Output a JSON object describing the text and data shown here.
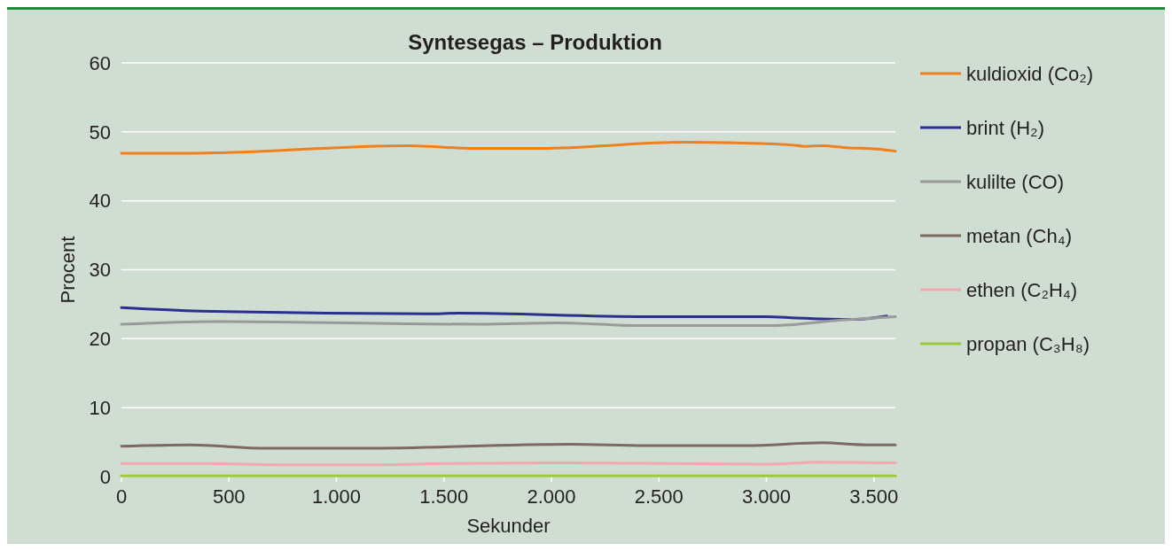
{
  "chart_data": {
    "type": "line",
    "title": "Syntesegas – Produktion",
    "xlabel": "Sekunder",
    "ylabel": "Procent",
    "xlim": [
      0,
      3600
    ],
    "xticks": [
      0,
      500,
      {
        "value": 1000,
        "label": "1.000"
      },
      {
        "value": 1500,
        "label": "1.500"
      },
      {
        "value": 2000,
        "label": "2.000"
      },
      {
        "value": 2500,
        "label": "2.500"
      },
      {
        "value": 3000,
        "label": "3.000"
      },
      {
        "value": 3500,
        "label": "3.500"
      }
    ],
    "ylim": [
      0,
      60
    ],
    "yticks": [
      0,
      10,
      20,
      30,
      40,
      50,
      60
    ],
    "grid": "y",
    "legend": "right",
    "marker": "none",
    "line_style": "solid",
    "series": [
      {
        "name": "kuldioxid (Co₂)",
        "color": "#f07f1e",
        "x": [
          0,
          310,
          1335,
          1640,
          1945,
          2625,
          2975,
          3115,
          3185,
          3260,
          3375,
          3515,
          3600
        ],
        "values": [
          46.9,
          46.9,
          48.0,
          47.6,
          47.6,
          48.5,
          48.3,
          48.1,
          47.9,
          48.0,
          47.7,
          47.5,
          47.2
        ]
      },
      {
        "name": "brint (H₂)",
        "color": "#2b2f8f",
        "x": [
          0,
          370,
          1425,
          1565,
          2435,
          3000,
          3140,
          3400,
          3560
        ],
        "values": [
          24.5,
          24.0,
          23.6,
          23.7,
          23.2,
          23.2,
          23.0,
          22.8,
          23.3
        ]
      },
      {
        "name": "kulilte (CO)",
        "color": "#9a9a9a",
        "x": [
          0,
          440,
          1660,
          2035,
          2410,
          3025,
          3350,
          3600
        ],
        "values": [
          22.1,
          22.5,
          22.1,
          22.3,
          21.9,
          21.9,
          22.7,
          23.2
        ]
      },
      {
        "name": "metan (Ch₄)",
        "color": "#7d6862",
        "x": [
          0,
          320,
          675,
          1120,
          2085,
          2435,
          2905,
          3260,
          3465,
          3600
        ],
        "values": [
          4.4,
          4.6,
          4.1,
          4.1,
          4.7,
          4.5,
          4.5,
          4.9,
          4.6,
          4.6
        ]
      },
      {
        "name": "ethen (C₂H₄)",
        "color": "#f4a7ac",
        "x": [
          0,
          400,
          745,
          1145,
          1500,
          2085,
          3025,
          3235,
          3600
        ],
        "values": [
          1.9,
          1.9,
          1.7,
          1.7,
          1.9,
          2.0,
          1.8,
          2.1,
          2.0
        ]
      },
      {
        "name": "propan (C₃H₈)",
        "color": "#9cc83c",
        "x": [
          0,
          3600
        ],
        "values": [
          0.1,
          0.1
        ]
      }
    ]
  }
}
